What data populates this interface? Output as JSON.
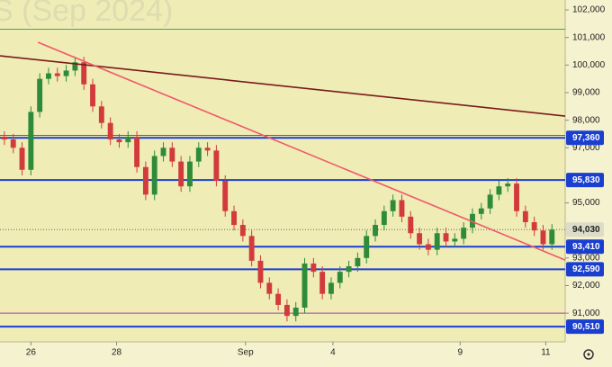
{
  "chart_data": {
    "type": "candlestick",
    "title": "S (Sep 2024)",
    "xlim": [
      0,
      64
    ],
    "xticks": [
      {
        "value": 3.5,
        "label": "26"
      },
      {
        "value": 13.2,
        "label": "28"
      },
      {
        "value": 27.8,
        "label": "Sep"
      },
      {
        "value": 37.7,
        "label": "4"
      },
      {
        "value": 52.1,
        "label": "9"
      },
      {
        "value": 61.8,
        "label": "11"
      }
    ],
    "ylim": [
      89960,
      102360
    ],
    "yticks": [
      {
        "value": 102000,
        "label": "102,000"
      },
      {
        "value": 101000,
        "label": "101,000"
      },
      {
        "value": 100000,
        "label": "100,000"
      },
      {
        "value": 99000,
        "label": "99,000"
      },
      {
        "value": 98000,
        "label": "98,000"
      },
      {
        "value": 97000,
        "label": "97,000"
      },
      {
        "value": 95000,
        "label": "95,000"
      },
      {
        "value": 93000,
        "label": "93,000"
      },
      {
        "value": 92000,
        "label": "92,000"
      },
      {
        "value": 91000,
        "label": "91,000"
      }
    ],
    "up_color": "#2e8b3a",
    "down_color": "#d23b3b",
    "open": [
      97400,
      97300,
      97000,
      96200,
      98300,
      99500,
      99700,
      99600,
      99800,
      100100,
      99300,
      98500,
      97900,
      97300,
      97200,
      97400,
      96300,
      95300,
      96700,
      97000,
      96500,
      95600,
      96500,
      97000,
      96900,
      95800,
      94700,
      94200,
      93800,
      92900,
      92100,
      91700,
      91300,
      90900,
      91200,
      92800,
      92500,
      91700,
      92100,
      92500,
      92700,
      93000,
      93800,
      94200,
      94700,
      95100,
      94500,
      93900,
      93500,
      93300,
      93900,
      93600,
      93700,
      94100,
      94600,
      94800,
      95300,
      95600,
      95700,
      94700,
      94300,
      94000,
      93500
    ],
    "high": [
      97600,
      97500,
      97200,
      98500,
      99700,
      99900,
      99900,
      100000,
      100300,
      100300,
      99500,
      98700,
      98100,
      97500,
      97600,
      97600,
      96500,
      96900,
      97200,
      97200,
      96700,
      96700,
      97200,
      97200,
      97100,
      96000,
      94900,
      94400,
      94000,
      93100,
      92300,
      91900,
      91500,
      91400,
      93000,
      93000,
      92700,
      92300,
      92700,
      92900,
      93200,
      94000,
      94400,
      94900,
      95300,
      95300,
      94700,
      94100,
      93700,
      94100,
      94100,
      93900,
      94300,
      94800,
      95000,
      95500,
      95800,
      95900,
      95900,
      94900,
      94500,
      94200,
      94230
    ],
    "low": [
      97100,
      96800,
      96000,
      96000,
      98100,
      99300,
      99400,
      99400,
      99600,
      99100,
      98300,
      97700,
      97100,
      97000,
      97000,
      96100,
      95100,
      95100,
      96500,
      96300,
      95400,
      95400,
      96300,
      96700,
      95600,
      94500,
      94000,
      93600,
      92700,
      91900,
      91500,
      91100,
      90700,
      90700,
      91000,
      92300,
      91500,
      91500,
      91900,
      92300,
      92500,
      92800,
      93600,
      94000,
      94500,
      94300,
      93700,
      93300,
      93100,
      93100,
      93400,
      93400,
      93500,
      93900,
      94400,
      94600,
      95100,
      95400,
      94500,
      94100,
      93800,
      93300,
      93300
    ],
    "close": [
      97300,
      97000,
      96200,
      98300,
      99500,
      99700,
      99600,
      99800,
      100100,
      99300,
      98500,
      97900,
      97300,
      97200,
      97400,
      96300,
      95300,
      96700,
      97000,
      96500,
      95600,
      96500,
      97000,
      96900,
      95800,
      94700,
      94200,
      93800,
      92900,
      92100,
      91700,
      91300,
      90900,
      91200,
      92800,
      92500,
      91700,
      92100,
      92500,
      92700,
      93000,
      93800,
      94200,
      94700,
      95100,
      94500,
      93900,
      93500,
      93300,
      93900,
      93600,
      93700,
      94100,
      94600,
      94800,
      95300,
      95600,
      95700,
      94700,
      94300,
      94000,
      93500,
      94030
    ],
    "levels": [
      {
        "value": 97360,
        "label": "97,360",
        "color": "#1a3fd0"
      },
      {
        "value": 95830,
        "label": "95,830",
        "color": "#1a3fd0"
      },
      {
        "value": 93410,
        "label": "93,410",
        "color": "#1a3fd0"
      },
      {
        "value": 92590,
        "label": "92,590",
        "color": "#1a3fd0"
      },
      {
        "value": 90510,
        "label": "90,510",
        "color": "#1a3fd0"
      }
    ],
    "thin_levels": [
      {
        "value": 101300,
        "color": "#3aa86b"
      },
      {
        "value": 97450,
        "color": "#d2334a"
      },
      {
        "value": 91000,
        "color": "#a0409a"
      }
    ],
    "last_price": {
      "value": 94030,
      "label": "94,030"
    },
    "trendlines": [
      {
        "color": "#7a1a1a",
        "x": [
          0,
          64
        ],
        "y": [
          100336,
          98149
        ]
      },
      {
        "color": "#f0586a",
        "x": [
          4.3,
          64
        ],
        "y": [
          100825,
          92927
        ]
      }
    ]
  }
}
